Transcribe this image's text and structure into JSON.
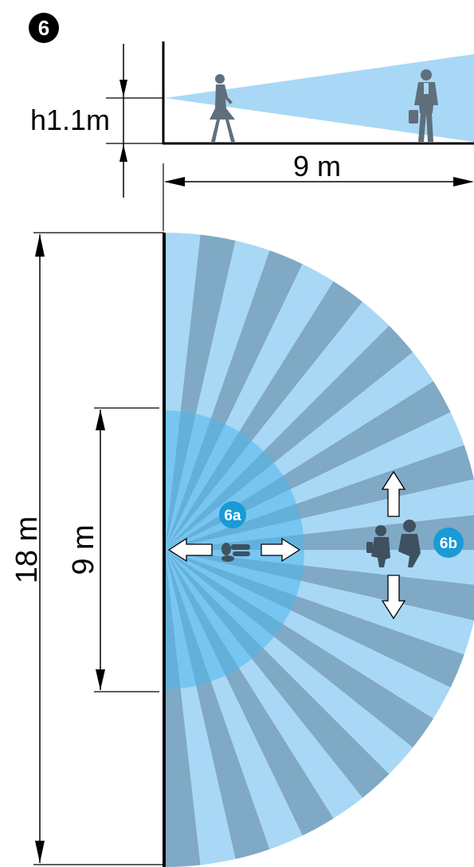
{
  "step_badge": {
    "text": "6"
  },
  "side_view": {
    "height_label": "h1.1m",
    "range_label": "9 m"
  },
  "top_view": {
    "outer_label": "18 m",
    "inner_label": "9 m",
    "zone_a_label": "6a",
    "zone_b_label": "6b",
    "segments": 28
  },
  "colors": {
    "beam_light": "#a8d8f5",
    "beam_dark": "#7fa9c4",
    "inner_zone": "#4db8ec",
    "badge_blue": "#1a9ad6",
    "figure": "#5f6f7c",
    "line": "#000000"
  }
}
